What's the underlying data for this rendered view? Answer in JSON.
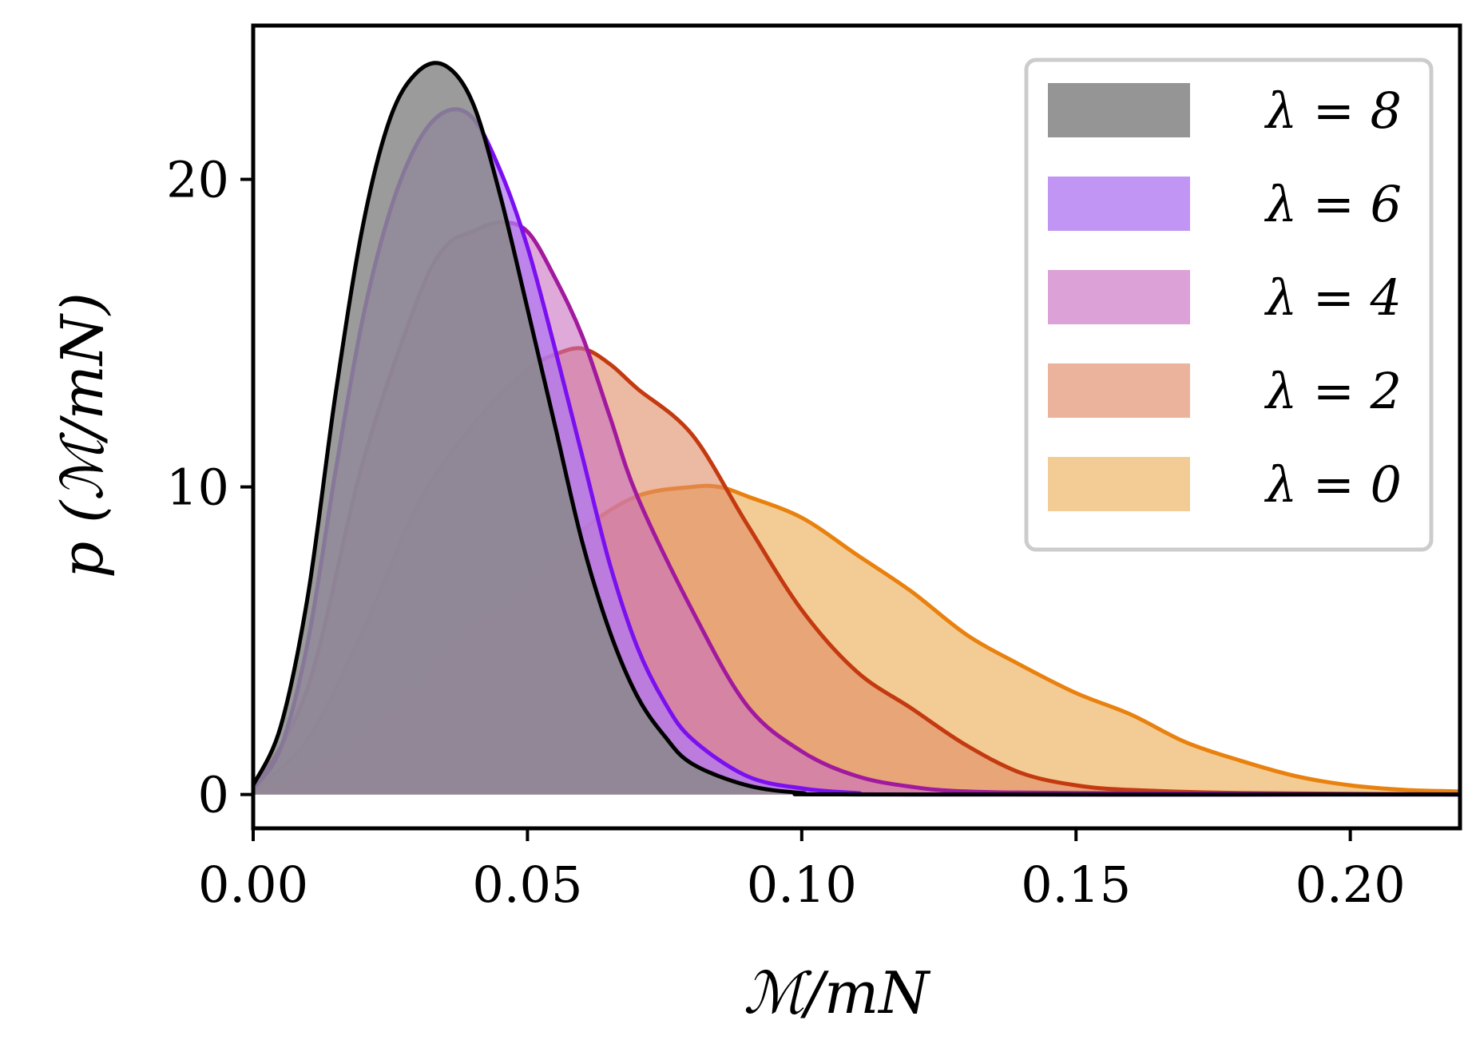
{
  "chart_data": {
    "type": "area",
    "xlabel": "ℳ/mN",
    "ylabel": "p (ℳ/mN)",
    "xlim": [
      0.0,
      0.22
    ],
    "ylim": [
      -1.1,
      25.0
    ],
    "xticks": [
      0.0,
      0.05,
      0.1,
      0.15,
      0.2
    ],
    "xtick_labels": [
      "0.00",
      "0.05",
      "0.10",
      "0.15",
      "0.20"
    ],
    "yticks": [
      0,
      10,
      20
    ],
    "ytick_labels": [
      "0",
      "10",
      "20"
    ],
    "grid": false,
    "legend_position": "top-right",
    "series": [
      {
        "name": "λ = 0",
        "line_color": "#e8810e",
        "fill_color": "#f3cc95",
        "fill_opacity": 1.0,
        "x": [
          0.0,
          0.01,
          0.02,
          0.03,
          0.04,
          0.05,
          0.06,
          0.07,
          0.08,
          0.085,
          0.09,
          0.1,
          0.11,
          0.12,
          0.13,
          0.14,
          0.15,
          0.16,
          0.17,
          0.18,
          0.19,
          0.2,
          0.21,
          0.22
        ],
        "y": [
          0.1,
          0.7,
          1.9,
          3.4,
          5.3,
          6.9,
          8.6,
          9.7,
          10.0,
          10.0,
          9.7,
          9.0,
          7.8,
          6.6,
          5.2,
          4.2,
          3.3,
          2.6,
          1.7,
          1.1,
          0.6,
          0.3,
          0.15,
          0.1
        ]
      },
      {
        "name": "λ = 2",
        "line_color": "#c43a10",
        "fill_color": "#e08a66",
        "fill_opacity": 0.6,
        "x": [
          0.0,
          0.01,
          0.02,
          0.03,
          0.04,
          0.05,
          0.055,
          0.06,
          0.065,
          0.07,
          0.08,
          0.09,
          0.1,
          0.11,
          0.12,
          0.13,
          0.14,
          0.15,
          0.16,
          0.18,
          0.22
        ],
        "y": [
          0.1,
          1.8,
          5.3,
          9.4,
          12.0,
          13.8,
          14.3,
          14.5,
          14.0,
          13.2,
          11.7,
          8.8,
          6.0,
          4.0,
          2.8,
          1.6,
          0.7,
          0.3,
          0.15,
          0.05,
          0.0
        ]
      },
      {
        "name": "λ = 4",
        "line_color": "#a1199e",
        "fill_color": "#ca6fc0",
        "fill_opacity": 0.6,
        "x": [
          0.0,
          0.01,
          0.02,
          0.03,
          0.035,
          0.04,
          0.045,
          0.05,
          0.055,
          0.06,
          0.065,
          0.07,
          0.08,
          0.09,
          0.1,
          0.11,
          0.12,
          0.13,
          0.15,
          0.22
        ],
        "y": [
          0.1,
          3.5,
          10.8,
          16.1,
          17.8,
          18.3,
          18.6,
          18.3,
          16.8,
          14.9,
          12.3,
          9.7,
          6.0,
          2.9,
          1.4,
          0.6,
          0.25,
          0.1,
          0.05,
          0.0
        ]
      },
      {
        "name": "λ = 6",
        "line_color": "#7a0ff0",
        "fill_color": "#b17af0",
        "fill_opacity": 0.75,
        "x": [
          0.0,
          0.005,
          0.01,
          0.015,
          0.02,
          0.025,
          0.03,
          0.035,
          0.04,
          0.045,
          0.05,
          0.055,
          0.06,
          0.065,
          0.07,
          0.075,
          0.08,
          0.09,
          0.1,
          0.11,
          0.12,
          0.22
        ],
        "y": [
          0.2,
          1.5,
          5.0,
          10.5,
          15.5,
          19.0,
          21.2,
          22.2,
          22.0,
          20.3,
          17.8,
          14.5,
          11.0,
          7.5,
          4.8,
          3.0,
          1.8,
          0.6,
          0.2,
          0.05,
          0.0,
          0.0
        ]
      },
      {
        "name": "λ = 8",
        "line_color": "#000000",
        "fill_color": "#8a8a8a",
        "fill_opacity": 0.85,
        "x": [
          0.0,
          0.005,
          0.01,
          0.015,
          0.02,
          0.025,
          0.03,
          0.035,
          0.04,
          0.045,
          0.05,
          0.055,
          0.06,
          0.065,
          0.07,
          0.075,
          0.08,
          0.09,
          0.1,
          0.11,
          0.22
        ],
        "y": [
          0.3,
          2.2,
          6.5,
          13.0,
          18.5,
          22.0,
          23.5,
          23.7,
          22.5,
          19.5,
          15.8,
          12.0,
          8.2,
          5.3,
          3.2,
          1.9,
          1.0,
          0.3,
          0.05,
          0.0,
          0.0
        ]
      }
    ]
  }
}
